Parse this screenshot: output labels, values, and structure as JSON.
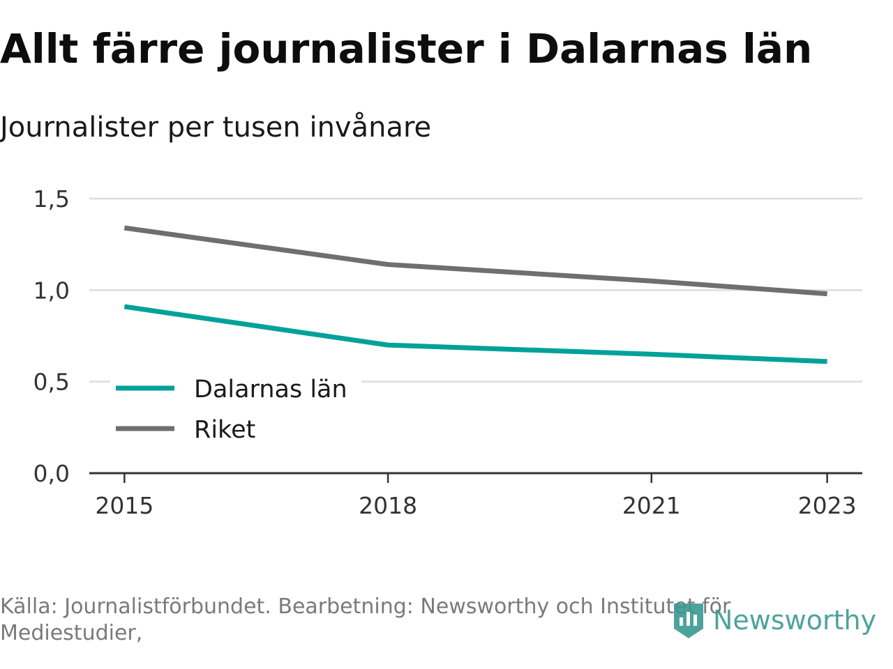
{
  "header": {
    "title": "Allt färre journalister i Dalarnas län",
    "subtitle": "Journalister per tusen invånare"
  },
  "footer": {
    "source": "Källa: Journalistförbundet. Bearbetning: Newsworthy och Institutet för Mediestudier,",
    "brand": "Newsworthy"
  },
  "colors": {
    "dalarnas": "#00a19a",
    "riket": "#6e6e73",
    "grid": "#dddddd",
    "axis": "#333333"
  },
  "chart_data": {
    "type": "line",
    "title": "Allt färre journalister i Dalarnas län",
    "subtitle": "Journalister per tusen invånare",
    "xlabel": "",
    "ylabel": "",
    "x": [
      2015,
      2018,
      2021,
      2023
    ],
    "x_ticks": [
      "2015",
      "2018",
      "2021",
      "2023"
    ],
    "y_ticks": [
      "0,0",
      "0,5",
      "1,0",
      "1,5"
    ],
    "y_tick_values": [
      0,
      0.5,
      1.0,
      1.5
    ],
    "xlim": [
      2014.6,
      2023.4
    ],
    "ylim": [
      0,
      1.5
    ],
    "grid": true,
    "legend_position": "bottom-left",
    "series": [
      {
        "name": "Dalarnas län",
        "color": "#00a19a",
        "values": [
          0.91,
          0.7,
          0.65,
          0.61
        ]
      },
      {
        "name": "Riket",
        "color": "#6e6e73",
        "values": [
          1.34,
          1.14,
          1.05,
          0.98
        ]
      }
    ]
  }
}
